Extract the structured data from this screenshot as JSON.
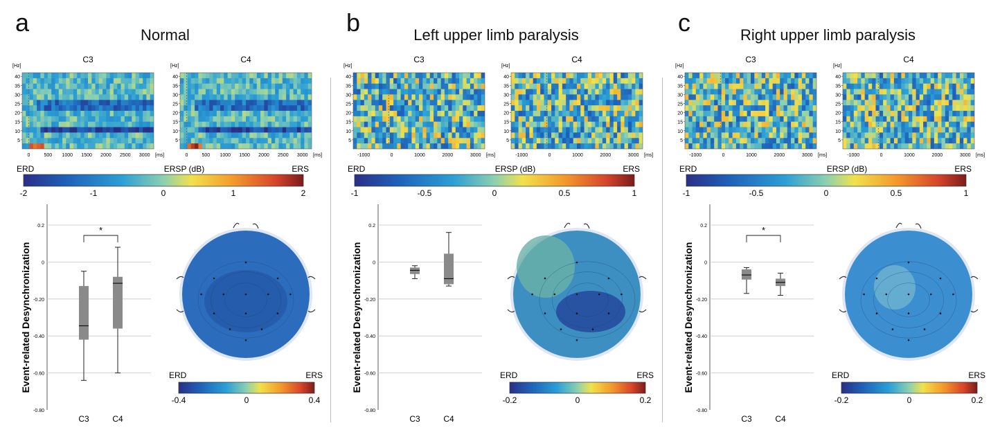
{
  "panels": [
    {
      "letter": "a",
      "title": "Normal",
      "spectrograms": [
        {
          "channel": "C3"
        },
        {
          "channel": "C4"
        }
      ],
      "freq_unit": "[Hz]",
      "time_unit": "[ms]",
      "freq_ticks": [
        40,
        35,
        30,
        25,
        20,
        15,
        10,
        5
      ],
      "time_ticks": [
        "0",
        "500",
        "1000",
        "1500",
        "2000",
        "2500",
        "3000"
      ],
      "colorbar": {
        "left": "ERD",
        "center": "ERSP (dB)",
        "right": "ERS",
        "ticks": [
          "-2",
          "-1",
          "0",
          "1",
          "2"
        ]
      },
      "boxplot": {
        "ylabel": "Event-related Desynchronization",
        "yticks": [
          "0.2",
          "0",
          "-0.20",
          "-0.40",
          "-0.60",
          "-0.80"
        ],
        "categories": [
          "C3",
          "C4"
        ],
        "significance": "*",
        "boxes": [
          {
            "label": "C3",
            "min": -0.64,
            "q1": -0.42,
            "median": -0.345,
            "q3": -0.13,
            "max": -0.05
          },
          {
            "label": "C4",
            "min": -0.6,
            "q1": -0.36,
            "median": -0.115,
            "q3": -0.08,
            "max": 0.08
          }
        ]
      },
      "topo_colorbar": {
        "left": "ERD",
        "right": "ERS",
        "ticks": [
          "-0.4",
          "0",
          "0.4"
        ]
      }
    },
    {
      "letter": "b",
      "title": "Left upper limb paralysis",
      "spectrograms": [
        {
          "channel": "C3"
        },
        {
          "channel": "C4"
        }
      ],
      "freq_unit": "[Hz]",
      "time_unit": "[ms]",
      "freq_ticks": [
        40,
        35,
        30,
        25,
        20,
        15,
        10,
        5
      ],
      "time_ticks": [
        "-1000",
        "0",
        "1000",
        "2000",
        "3000"
      ],
      "colorbar": {
        "left": "ERD",
        "center": "ERSP (dB)",
        "right": "ERS",
        "ticks": [
          "-1",
          "-0.5",
          "0",
          "0.5",
          "1"
        ]
      },
      "boxplot": {
        "ylabel": "Event-related Desynchronization",
        "yticks": [
          "0.2",
          "0",
          "-0.20",
          "-0.40",
          "-0.60",
          "-0.80"
        ],
        "categories": [
          "C3",
          "C4"
        ],
        "significance": "",
        "boxes": [
          {
            "label": "C3",
            "min": -0.09,
            "q1": -0.065,
            "median": -0.045,
            "q3": -0.03,
            "max": -0.02
          },
          {
            "label": "C4",
            "min": -0.13,
            "q1": -0.12,
            "median": -0.09,
            "q3": 0.045,
            "max": 0.16
          }
        ]
      },
      "topo_colorbar": {
        "left": "ERD",
        "right": "ERS",
        "ticks": [
          "-0.2",
          "0",
          "0.2"
        ]
      }
    },
    {
      "letter": "c",
      "title": "Right upper limb paralysis",
      "spectrograms": [
        {
          "channel": "C3"
        },
        {
          "channel": "C4"
        }
      ],
      "freq_unit": "[Hz]",
      "time_unit": "[ms]",
      "freq_ticks": [
        40,
        35,
        30,
        25,
        20,
        15,
        10,
        5
      ],
      "time_ticks": [
        "-1000",
        "0",
        "1000",
        "2000",
        "3000"
      ],
      "colorbar": {
        "left": "ERD",
        "center": "ERSP (dB)",
        "right": "ERS",
        "ticks": [
          "-1",
          "-0.5",
          "0",
          "0.5",
          "1"
        ]
      },
      "boxplot": {
        "ylabel": "Event-related Desynchronization",
        "yticks": [
          "0.2",
          "0",
          "-0.20",
          "-0.40",
          "-0.60",
          "-0.80"
        ],
        "categories": [
          "C3",
          "C4"
        ],
        "significance": "*",
        "boxes": [
          {
            "label": "C3",
            "min": -0.17,
            "q1": -0.095,
            "median": -0.07,
            "q3": -0.04,
            "max": -0.03
          },
          {
            "label": "C4",
            "min": -0.18,
            "q1": -0.13,
            "median": -0.11,
            "q3": -0.09,
            "max": -0.06
          }
        ]
      },
      "topo_colorbar": {
        "left": "ERD",
        "right": "ERS",
        "ticks": [
          "-0.2",
          "0",
          "0.2"
        ]
      }
    }
  ]
}
